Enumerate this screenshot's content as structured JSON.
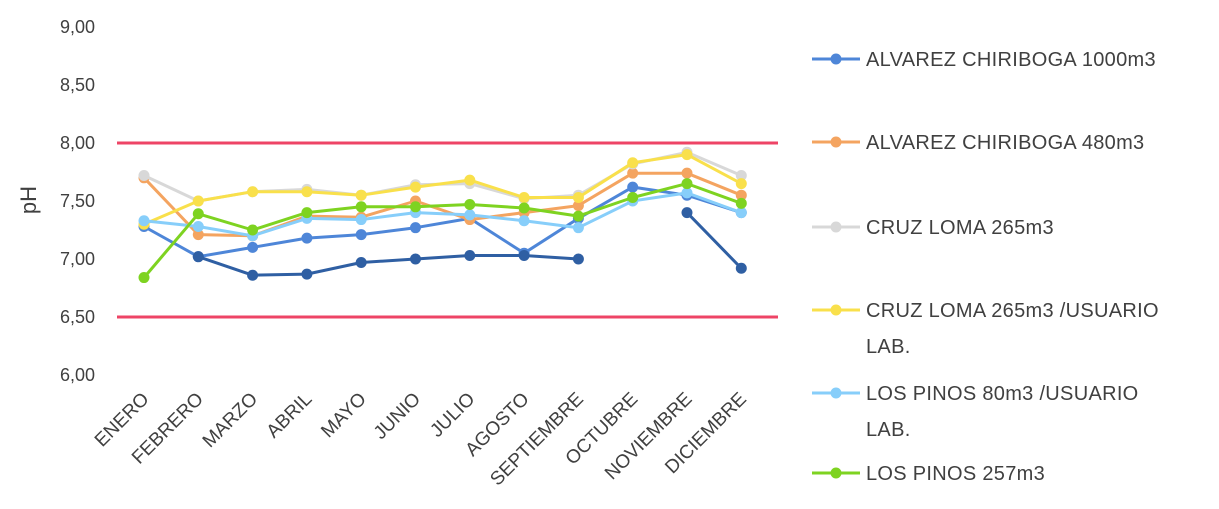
{
  "chart_data": {
    "type": "line",
    "title": "",
    "xlabel": "",
    "ylabel": "pH",
    "ylim": [
      6.0,
      9.0
    ],
    "yticks": [
      "6,00",
      "6,50",
      "7,00",
      "7,50",
      "8,00",
      "8,50",
      "9,00"
    ],
    "ytick_values": [
      6.0,
      6.5,
      7.0,
      7.5,
      8.0,
      8.5,
      9.0
    ],
    "categories": [
      "ENERO",
      "FEBRERO",
      "MARZO",
      "ABRIL",
      "MAYO",
      "JUNIO",
      "JULIO",
      "AGOSTO",
      "SEPTIEMBRE",
      "OCTUBRE",
      "NOVIEMBRE",
      "DICIEMBRE"
    ],
    "grid": false,
    "legend_position": "right",
    "reference_lines": [
      {
        "value": 8.0,
        "color": "#ee4466"
      },
      {
        "value": 6.5,
        "color": "#ee4466"
      }
    ],
    "series": [
      {
        "name": "ALVAREZ CHIRIBOGA 1000m3",
        "color": "#4e86d8",
        "values": [
          7.28,
          7.02,
          7.1,
          7.18,
          7.21,
          7.27,
          7.35,
          7.05,
          7.35,
          7.62,
          7.55,
          7.4
        ]
      },
      {
        "name": "ALVAREZ CHIRIBOGA 480m3",
        "color": "#f4a460",
        "values": [
          7.7,
          7.21,
          7.2,
          7.37,
          7.36,
          7.5,
          7.34,
          7.4,
          7.46,
          7.74,
          7.74,
          7.55
        ]
      },
      {
        "name": "CRUZ LOMA 265m3",
        "color": "#d8d8d8",
        "values": [
          7.72,
          7.5,
          7.58,
          7.6,
          7.55,
          7.64,
          7.65,
          7.52,
          7.55,
          7.82,
          7.92,
          7.72
        ]
      },
      {
        "name": "CRUZ LOMA 265m3 /USUARIO LAB.",
        "color": "#f9e04b",
        "values": [
          7.3,
          7.5,
          7.58,
          7.58,
          7.55,
          7.62,
          7.68,
          7.53,
          7.53,
          7.83,
          7.9,
          7.65
        ]
      },
      {
        "name": "LOS PINOS 80m3 /USUARIO LAB.",
        "color": "#87cefa",
        "values": [
          7.33,
          7.28,
          7.2,
          7.35,
          7.34,
          7.4,
          7.38,
          7.33,
          7.27,
          7.5,
          7.57,
          7.4
        ]
      },
      {
        "name": "LOS PINOS 257m3",
        "color": "#7ed321",
        "values": [
          6.84,
          7.39,
          7.25,
          7.4,
          7.45,
          7.45,
          7.47,
          7.44,
          7.37,
          7.53,
          7.65,
          7.48
        ]
      },
      {
        "name": "",
        "color": "#2f5fa3",
        "values": [
          null,
          7.02,
          6.86,
          6.87,
          6.97,
          7.0,
          7.03,
          7.03,
          7.0,
          null,
          7.4,
          6.92
        ]
      }
    ],
    "legend": [
      {
        "label": "ALVAREZ CHIRIBOGA 1000m3",
        "lines": [
          "ALVAREZ CHIRIBOGA 1000m3"
        ],
        "color": "#4e86d8"
      },
      {
        "label": "ALVAREZ CHIRIBOGA 480m3",
        "lines": [
          "ALVAREZ CHIRIBOGA 480m3"
        ],
        "color": "#f4a460"
      },
      {
        "label": "CRUZ LOMA 265m3",
        "lines": [
          "CRUZ LOMA 265m3"
        ],
        "color": "#d8d8d8"
      },
      {
        "label": "CRUZ LOMA 265m3 /USUARIO LAB.",
        "lines": [
          "CRUZ LOMA 265m3 /USUARIO",
          "LAB."
        ],
        "color": "#f9e04b"
      },
      {
        "label": "LOS PINOS 80m3 /USUARIO LAB.",
        "lines": [
          "LOS PINOS 80m3 /USUARIO",
          "LAB."
        ],
        "color": "#87cefa"
      },
      {
        "label": "LOS PINOS 257m3",
        "lines": [
          "LOS PINOS 257m3"
        ],
        "color": "#7ed321"
      }
    ]
  }
}
